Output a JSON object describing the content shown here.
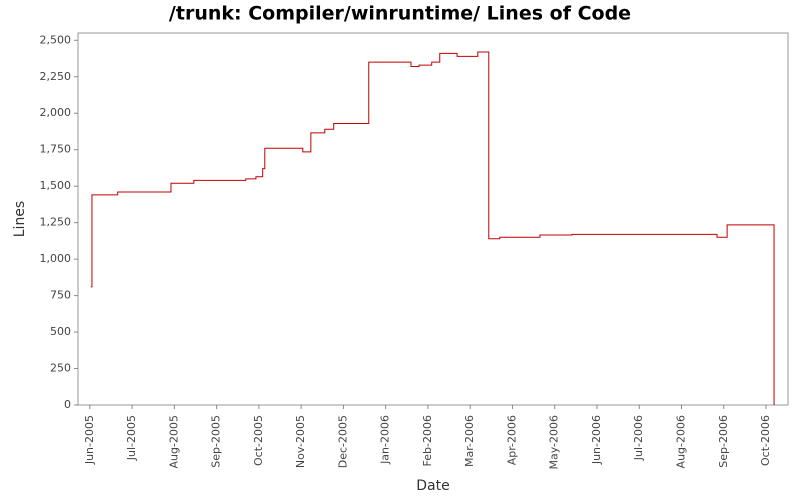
{
  "chart_data": {
    "type": "step",
    "title": "/trunk: Compiler/winruntime/ Lines of Code",
    "x_label": "Date",
    "y_label": "Lines",
    "x": [
      0.02,
      0.05,
      0.66,
      1.92,
      2.46,
      3.69,
      3.93,
      4.09,
      4.14,
      5.04,
      5.23,
      5.56,
      5.77,
      6.6,
      7.6,
      7.79,
      8.09,
      8.28,
      8.69,
      9.18,
      9.44,
      9.7,
      10.65,
      11.41,
      14.84,
      15.08,
      16.19
    ],
    "series": [
      {
        "name": "Lines",
        "color": "#c00000",
        "values": [
          810,
          1440,
          1460,
          1520,
          1540,
          1550,
          1565,
          1620,
          1760,
          1735,
          1865,
          1890,
          1930,
          2350,
          2320,
          2330,
          2350,
          2410,
          2390,
          2420,
          1140,
          1150,
          1165,
          1170,
          1150,
          1235,
          0
        ]
      }
    ],
    "xlim": [
      -0.28,
      16.52
    ],
    "xticks": [
      {
        "value": 0,
        "label": "Jun-2005"
      },
      {
        "value": 1,
        "label": "Jul-2005"
      },
      {
        "value": 2,
        "label": "Aug-2005"
      },
      {
        "value": 3,
        "label": "Sep-2005"
      },
      {
        "value": 4,
        "label": "Oct-2005"
      },
      {
        "value": 5,
        "label": "Nov-2005"
      },
      {
        "value": 6,
        "label": "Dec-2005"
      },
      {
        "value": 7,
        "label": "Jan-2006"
      },
      {
        "value": 8,
        "label": "Feb-2006"
      },
      {
        "value": 9,
        "label": "Mar-2006"
      },
      {
        "value": 10,
        "label": "Apr-2006"
      },
      {
        "value": 11,
        "label": "May-2006"
      },
      {
        "value": 12,
        "label": "Jun-2006"
      },
      {
        "value": 13,
        "label": "Jul-2006"
      },
      {
        "value": 14,
        "label": "Aug-2006"
      },
      {
        "value": 15,
        "label": "Sep-2006"
      },
      {
        "value": 16,
        "label": "Oct-2006"
      }
    ],
    "ylim": [
      0,
      2550
    ],
    "yticks": [
      0,
      250,
      500,
      750,
      {
        "value": 1000,
        "label": "1,000"
      },
      {
        "value": 1250,
        "label": "1,250"
      },
      {
        "value": 1500,
        "label": "1,500"
      },
      {
        "value": 1750,
        "label": "1,750"
      },
      {
        "value": 2000,
        "label": "2,000"
      },
      {
        "value": 2250,
        "label": "2,250"
      },
      {
        "value": 2500,
        "label": "2,500"
      }
    ],
    "grid": false
  }
}
